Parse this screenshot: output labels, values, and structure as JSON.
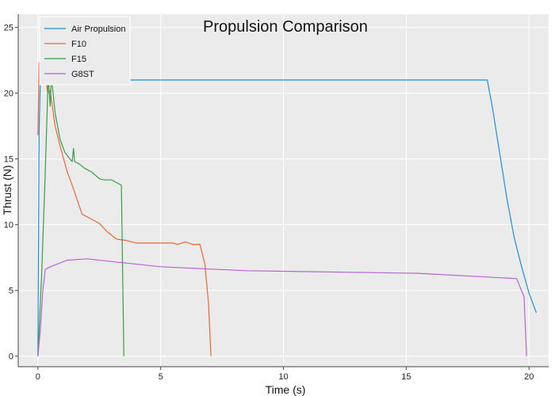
{
  "chart_data": {
    "type": "line",
    "title": "Propulsion Comparison",
    "xlabel": "Time (s)",
    "ylabel": "Thrust (N)",
    "xlim": [
      -0.8,
      20.8
    ],
    "ylim": [
      -0.8,
      26
    ],
    "xticks": [
      0,
      5,
      10,
      15,
      20
    ],
    "yticks": [
      0,
      5,
      10,
      15,
      20,
      25
    ],
    "grid": true,
    "background": "#ebebeb",
    "legend_position": "top-left",
    "series": [
      {
        "name": "Air Propulsion",
        "color": "#1f8fd6",
        "points": [
          [
            0,
            0
          ],
          [
            0.05,
            17
          ],
          [
            0.1,
            21
          ],
          [
            18.3,
            21
          ],
          [
            18.5,
            19
          ],
          [
            18.8,
            15.5
          ],
          [
            19.1,
            12
          ],
          [
            19.4,
            9
          ],
          [
            19.7,
            6.8
          ],
          [
            20,
            4.8
          ],
          [
            20.3,
            3.3
          ]
        ]
      },
      {
        "name": "F10",
        "color": "#e8663a",
        "points": [
          [
            0,
            16.8
          ],
          [
            0.05,
            22.3
          ],
          [
            0.15,
            22.2
          ],
          [
            0.3,
            21.5
          ],
          [
            0.4,
            20
          ],
          [
            0.5,
            20.2
          ],
          [
            0.55,
            19.5
          ],
          [
            0.7,
            17.5
          ],
          [
            0.9,
            16
          ],
          [
            1.2,
            14
          ],
          [
            1.4,
            13
          ],
          [
            1.8,
            10.8
          ],
          [
            2.2,
            10.4
          ],
          [
            2.5,
            10.1
          ],
          [
            2.8,
            9.5
          ],
          [
            3.2,
            8.9
          ],
          [
            3.6,
            8.8
          ],
          [
            4,
            8.6
          ],
          [
            5.5,
            8.6
          ],
          [
            5.7,
            8.5
          ],
          [
            6,
            8.7
          ],
          [
            6.3,
            8.5
          ],
          [
            6.6,
            8.5
          ],
          [
            6.8,
            7
          ],
          [
            6.95,
            4
          ],
          [
            7.05,
            0
          ]
        ]
      },
      {
        "name": "F15",
        "color": "#3a9a48",
        "points": [
          [
            0,
            0
          ],
          [
            0.15,
            6
          ],
          [
            0.3,
            14
          ],
          [
            0.42,
            21.3
          ],
          [
            0.5,
            19
          ],
          [
            0.55,
            21.3
          ],
          [
            0.7,
            18.5
          ],
          [
            0.9,
            16.5
          ],
          [
            1.1,
            15.5
          ],
          [
            1.3,
            15
          ],
          [
            1.4,
            14.8
          ],
          [
            1.45,
            15.8
          ],
          [
            1.5,
            14.8
          ],
          [
            1.7,
            14.6
          ],
          [
            1.9,
            14.3
          ],
          [
            2.2,
            14
          ],
          [
            2.5,
            13.5
          ],
          [
            2.7,
            13.4
          ],
          [
            3,
            13.4
          ],
          [
            3.2,
            13.2
          ],
          [
            3.4,
            13
          ],
          [
            3.5,
            0
          ]
        ]
      },
      {
        "name": "G8ST",
        "color": "#b366cc",
        "points": [
          [
            0,
            0
          ],
          [
            0.1,
            2
          ],
          [
            0.2,
            5
          ],
          [
            0.3,
            6.6
          ],
          [
            0.5,
            6.8
          ],
          [
            1.2,
            7.3
          ],
          [
            2,
            7.4
          ],
          [
            3,
            7.2
          ],
          [
            5,
            6.8
          ],
          [
            8.5,
            6.5
          ],
          [
            15.5,
            6.3
          ],
          [
            19.5,
            5.9
          ],
          [
            19.8,
            4.5
          ],
          [
            19.9,
            0
          ]
        ]
      }
    ]
  }
}
